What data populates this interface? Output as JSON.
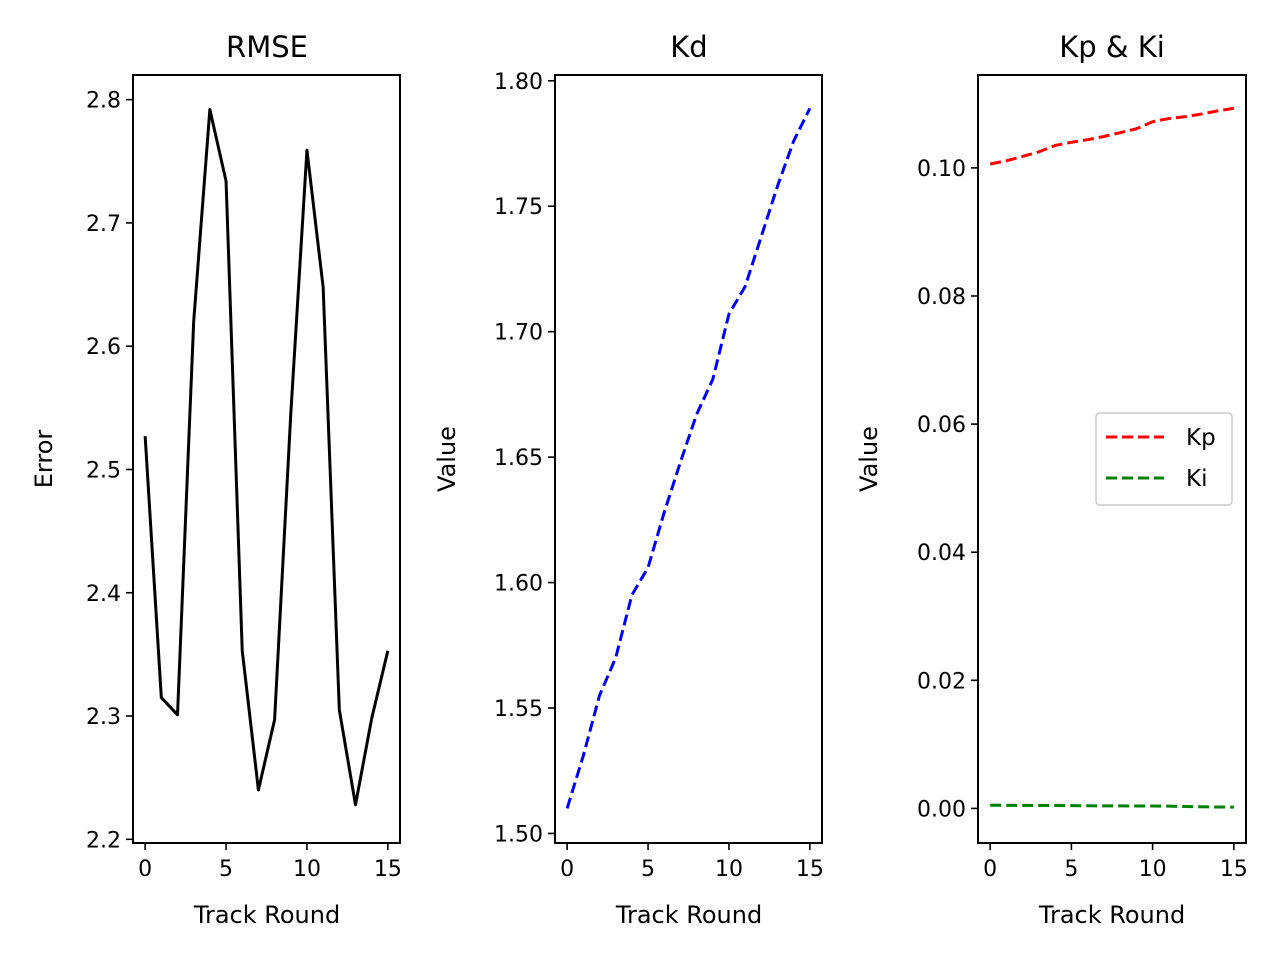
{
  "chart_data": [
    {
      "type": "line",
      "title": "RMSE",
      "xlabel": "Track Round",
      "ylabel": "Error",
      "xlim": [
        -0.75,
        15.75
      ],
      "ylim": [
        2.197,
        2.82
      ],
      "xticks": [
        0,
        5,
        10,
        15
      ],
      "yticks": [
        2.2,
        2.3,
        2.4,
        2.5,
        2.6,
        2.7,
        2.8
      ],
      "ytick_labels": [
        "2.2",
        "2.3",
        "2.4",
        "2.5",
        "2.6",
        "2.7",
        "2.8"
      ],
      "x": [
        0,
        1,
        2,
        3,
        4,
        5,
        6,
        7,
        8,
        9,
        10,
        11,
        12,
        13,
        14,
        15
      ],
      "series": [
        {
          "color": "#000000",
          "dash": "solid",
          "values": [
            2.527,
            2.315,
            2.301,
            2.62,
            2.792,
            2.734,
            2.353,
            2.24,
            2.297,
            2.545,
            2.759,
            2.648,
            2.305,
            2.228,
            2.298,
            2.353
          ]
        }
      ],
      "grid": false,
      "legend": null
    },
    {
      "type": "line",
      "title": "Kd",
      "xlabel": "Track Round",
      "ylabel": "Value",
      "xlim": [
        -0.75,
        15.75
      ],
      "ylim": [
        1.4962,
        1.8023
      ],
      "xticks": [
        0,
        5,
        10,
        15
      ],
      "yticks": [
        1.5,
        1.55,
        1.6,
        1.65,
        1.7,
        1.75,
        1.8
      ],
      "ytick_labels": [
        "1.50",
        "1.55",
        "1.60",
        "1.65",
        "1.70",
        "1.75",
        "1.80"
      ],
      "x": [
        0,
        1,
        2,
        3,
        4,
        5,
        6,
        7,
        8,
        9,
        10,
        11,
        12,
        13,
        14,
        15
      ],
      "series": [
        {
          "color": "#0000ff",
          "dash": "dashed",
          "values": [
            1.51,
            1.531,
            1.555,
            1.57,
            1.595,
            1.606,
            1.628,
            1.648,
            1.667,
            1.681,
            1.707,
            1.718,
            1.738,
            1.758,
            1.776,
            1.789
          ]
        }
      ],
      "grid": false,
      "legend": null
    },
    {
      "type": "line",
      "title": "Kp & Ki",
      "xlabel": "Track Round",
      "ylabel": "Value",
      "xlim": [
        -0.75,
        15.75
      ],
      "ylim": [
        -0.0054,
        0.1145
      ],
      "xticks": [
        0,
        5,
        10,
        15
      ],
      "yticks": [
        0.0,
        0.02,
        0.04,
        0.06,
        0.08,
        0.1
      ],
      "ytick_labels": [
        "0.00",
        "0.02",
        "0.04",
        "0.06",
        "0.08",
        "0.10"
      ],
      "x": [
        0,
        1,
        2,
        3,
        4,
        5,
        6,
        7,
        8,
        9,
        10,
        11,
        12,
        13,
        14,
        15
      ],
      "series": [
        {
          "name": "Kp",
          "color": "#ff0000",
          "dash": "dashed",
          "values": [
            0.1006,
            0.1011,
            0.1018,
            0.1025,
            0.1035,
            0.104,
            0.1044,
            0.1049,
            0.1055,
            0.1061,
            0.1072,
            0.1077,
            0.108,
            0.1084,
            0.1089,
            0.1093
          ]
        },
        {
          "name": "Ki",
          "color": "#008000",
          "dash": "dashed",
          "values": [
            0.0005,
            0.00048,
            0.00047,
            0.00046,
            0.00045,
            0.00043,
            0.00041,
            0.0004,
            0.00039,
            0.00038,
            0.00037,
            0.00035,
            0.00029,
            0.00025,
            0.00022,
            0.0002
          ]
        }
      ],
      "grid": false,
      "legend": "center-right"
    }
  ]
}
